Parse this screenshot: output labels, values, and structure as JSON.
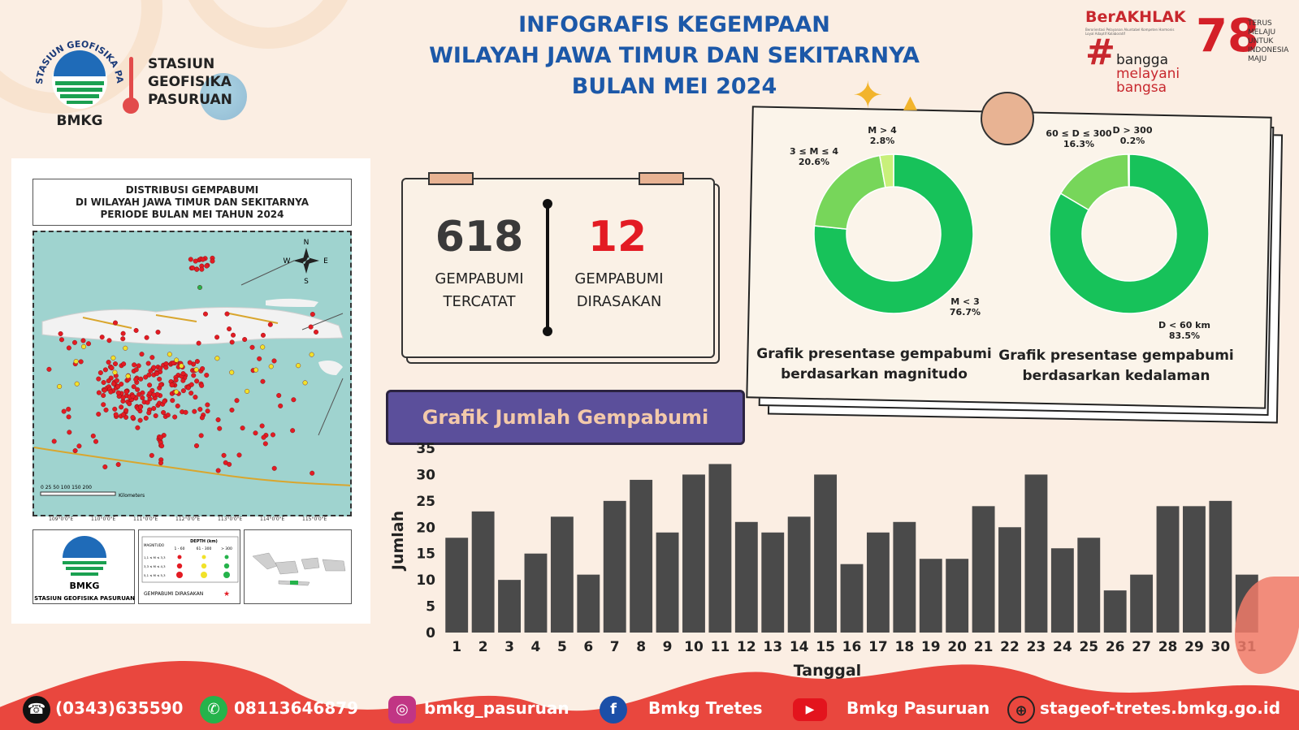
{
  "header": {
    "title_lines": [
      "INFOGRAFIS KEGEMPAAN",
      "WILAYAH JAWA TIMUR DAN SEKITARNYA",
      "BULAN MEI 2024"
    ],
    "station_lines": [
      "STASIUN",
      "GEOFISIKA",
      "PASURUAN"
    ],
    "logo_ring_text": "STASIUN GEOFISIKA PASURUAN",
    "logo_label": "BMKG",
    "berakhlak": "BerAKHLAK",
    "berakhlak_sub": "Berorientasi Pelayanan Akuntabel Kompeten Harmonis Loyal Adaptif Kolaboratif",
    "hashtag_lines": [
      "bangga",
      "melayani",
      "bangsa"
    ],
    "ri_number": "78",
    "ri_lines": [
      "TERUS",
      "MELAJU",
      "UNTUK",
      "INDONESIA",
      "MAJU"
    ]
  },
  "map": {
    "title_lines": [
      "DISTRIBUSI GEMPABUMI",
      "DI WILAYAH JAWA TIMUR DAN SEKITARNYA",
      "PERIODE BULAN MEI TAHUN 2024"
    ],
    "lon_ticks": [
      "109°0'0\"E",
      "110°0'0\"E",
      "111°0'0\"E",
      "112°0'0\"E",
      "113°0'0\"E",
      "114°0'0\"E",
      "115°0'0\"E"
    ],
    "compass": {
      "n": "N",
      "s": "S",
      "e": "E",
      "w": "W"
    },
    "scale_text": "0  25  50     100     150     200",
    "scale_unit": "Kilometers",
    "legend": {
      "logo_label": "BMKG",
      "station": "STASIUN GEOFISIKA PASURUAN",
      "depth_header": "DEPTH (km)",
      "mag_header": "MAGNITUDO",
      "depth_cols": [
        "1 - 60",
        "61 - 300",
        "> 300"
      ],
      "mag_rows": [
        "1,1 ≤ M ≤ 3,3",
        "3,3 ≤ M ≤ 4,3",
        "5,1 ≤ M ≤ 5,3"
      ],
      "felt": "GEMPABUMI DIRASAKAN"
    }
  },
  "stats": {
    "recorded_value": "618",
    "recorded_label_lines": [
      "GEMPABUMI",
      "TERCATAT"
    ],
    "felt_value": "12",
    "felt_label_lines": [
      "GEMPABUMI",
      "DIRASAKAN"
    ]
  },
  "chart_data": [
    {
      "type": "pie",
      "title": "Grafik presentase gempabumi berdasarkan magnitudo",
      "labels": [
        "M < 3",
        "3 ≤ M ≤ 4",
        "M > 4"
      ],
      "values": [
        76.7,
        20.6,
        2.8
      ],
      "value_labels": [
        "76.7%",
        "20.6%",
        "2.8%"
      ],
      "colors": [
        "#17c25a",
        "#77d65a",
        "#c8f07a"
      ],
      "donut": true
    },
    {
      "type": "pie",
      "title": "Grafik presentase gempabumi berdasarkan kedalaman",
      "labels": [
        "D < 60 km",
        "60 ≤ D ≤ 300",
        "D > 300"
      ],
      "values": [
        83.5,
        16.3,
        0.2
      ],
      "value_labels": [
        "83.5%",
        "16.3%",
        "0.2%"
      ],
      "colors": [
        "#17c25a",
        "#77d65a",
        "#c8f07a"
      ],
      "donut": true
    },
    {
      "type": "bar",
      "title": "Grafik Jumlah Gempabumi",
      "xlabel": "Tanggal",
      "ylabel": "Jumlah",
      "categories": [
        "1",
        "2",
        "3",
        "4",
        "5",
        "6",
        "7",
        "8",
        "9",
        "10",
        "11",
        "12",
        "13",
        "14",
        "15",
        "16",
        "17",
        "18",
        "19",
        "20",
        "21",
        "22",
        "23",
        "24",
        "25",
        "26",
        "27",
        "28",
        "29",
        "30",
        "31"
      ],
      "values": [
        18,
        23,
        10,
        15,
        22,
        11,
        25,
        29,
        19,
        30,
        32,
        21,
        19,
        22,
        30,
        13,
        19,
        21,
        14,
        14,
        24,
        20,
        30,
        16,
        18,
        8,
        11,
        24,
        24,
        25,
        11
      ],
      "yticks": [
        0,
        5,
        10,
        15,
        20,
        25,
        30,
        35
      ],
      "ylim": [
        0,
        35
      ],
      "color": "#4a4a4a"
    }
  ],
  "footer": {
    "phone": "(0343)635590",
    "whatsapp": "08113646879",
    "instagram": "bmkg_pasuruan",
    "facebook": "Bmkg  Tretes",
    "youtube": "Bmkg Pasuruan",
    "website": "stageof-tretes.bmkg.go.id"
  },
  "colors": {
    "title_blue": "#1c58a8",
    "felt_red": "#e31b23",
    "purple": "#5b4f9b",
    "footer": "#e9473e"
  }
}
